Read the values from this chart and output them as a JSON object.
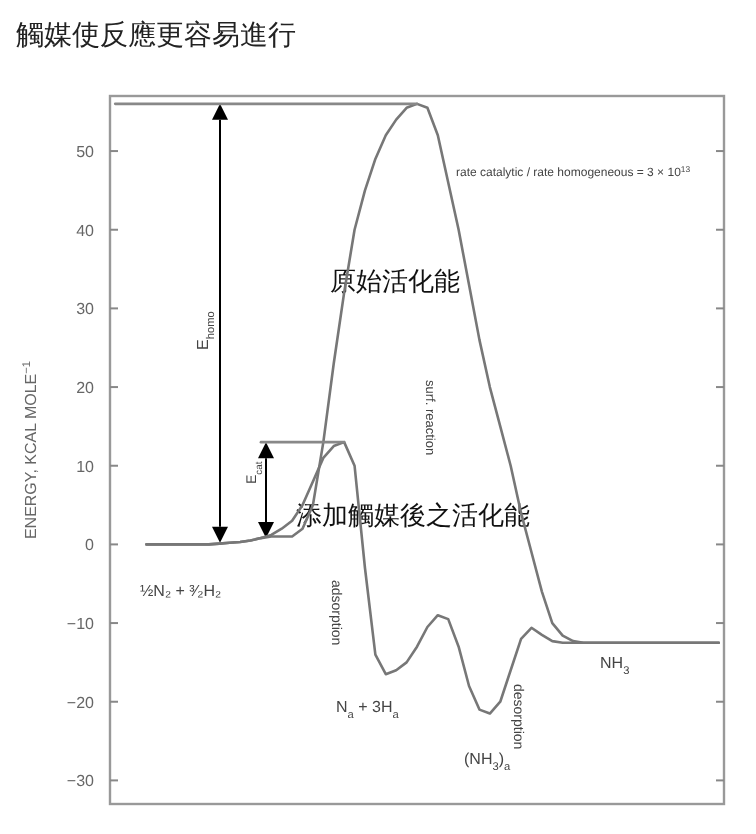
{
  "chart_data": {
    "type": "line",
    "title": "觸媒使反應更容易進行",
    "ylabel": "ENERGY, KCAL MOLE$^{−1}$",
    "categories": [
      null,
      null,
      null,
      null,
      null,
      null,
      null,
      null,
      null,
      null,
      null,
      null,
      null,
      null,
      null,
      null,
      null,
      null,
      null,
      null,
      null,
      null,
      null,
      null,
      null,
      null,
      null,
      null,
      null,
      null,
      null,
      null,
      null,
      null,
      null,
      null,
      null,
      null,
      null,
      null,
      null,
      null,
      null,
      null,
      null,
      null,
      null,
      null,
      null,
      null,
      null,
      null,
      null,
      null,
      null,
      null,
      null,
      null,
      null
    ],
    "series": [
      {
        "color": "#777777",
        "values": [
          null,
          null,
          null,
          0,
          0,
          0,
          0,
          0,
          0,
          0,
          0.1,
          0.2,
          0.3,
          0.5,
          0.8,
          1,
          1,
          1,
          2,
          5,
          13,
          23,
          32,
          40,
          45,
          49,
          52,
          54,
          55.5,
          56,
          55.5,
          52,
          46,
          40,
          33,
          26,
          20,
          15,
          10,
          4,
          -1,
          -6,
          -10,
          -11.6,
          -12.3,
          -12.5,
          -12.5,
          -12.5,
          -12.5,
          -12.5,
          -12.5,
          -12.5,
          -12.5,
          -12.5,
          -12.5,
          -12.5,
          -12.5,
          -12.5,
          -12.5
        ]
      },
      {
        "color": "#777777",
        "values": [
          null,
          null,
          null,
          0,
          0,
          0,
          0,
          0,
          0,
          0,
          0.1,
          0.2,
          0.3,
          0.5,
          0.8,
          1.2,
          2,
          3,
          5,
          8,
          11,
          12.5,
          13,
          10,
          -3,
          -14,
          -16.5,
          -16,
          -15,
          -13,
          -10.5,
          -9,
          -9.5,
          -13,
          -18,
          -21,
          -21.5,
          -20,
          -16,
          -12,
          -10.6,
          -11.5,
          -12.3,
          -12.5,
          -12.5,
          -12.5,
          -12.5,
          -12.5,
          -12.5,
          -12.5,
          -12.5,
          -12.5,
          -12.5,
          -12.5,
          -12.5,
          -12.5,
          -12.5,
          -12.5,
          -12.5
        ]
      },
      {
        "color": "#888888",
        "values": [
          56,
          56,
          56,
          56,
          56,
          56,
          56,
          56,
          56,
          56,
          56,
          56,
          56,
          56,
          56,
          56,
          56,
          56,
          56,
          56,
          56,
          56,
          56,
          56,
          56,
          56,
          56,
          56,
          56,
          56,
          null,
          null,
          null,
          null,
          null,
          null,
          null,
          null,
          null,
          null,
          null,
          null,
          null,
          null,
          null,
          null,
          null,
          null,
          null,
          null,
          null,
          null,
          null,
          null,
          null,
          null,
          null,
          null,
          null
        ]
      },
      {
        "color": "#888888",
        "values": [
          null,
          null,
          null,
          null,
          null,
          null,
          null,
          null,
          null,
          null,
          null,
          null,
          null,
          null,
          13,
          13,
          13,
          13,
          13,
          13,
          13,
          13,
          13,
          null,
          null,
          null,
          null,
          null,
          null,
          null,
          null,
          null,
          null,
          null,
          null,
          null,
          null,
          null,
          null,
          null,
          null,
          null,
          null,
          null,
          null,
          null,
          null,
          null,
          null,
          null,
          null,
          null,
          null,
          null,
          null,
          null,
          null,
          null,
          null
        ]
      }
    ],
    "ylim": [
      -33,
      57
    ],
    "yticks": [
      -30,
      -20,
      -10,
      0,
      10,
      20,
      30,
      40,
      50
    ],
    "tick_labels": "y",
    "grid": false,
    "annotations": [
      "原始活化能",
      "添加觸媒後之活化能",
      "½N₂ + ³⁄₂H₂",
      "adsorption",
      "surf. reaction",
      "desorption",
      "N$_{a}$ + 3H$_{a}$",
      "(NH$_{3}$)$_{a}$",
      "NH$_{3}$",
      "rate catalytic / rate homogeneous = 3 × 10$^{13}$",
      "E$_{homo}$",
      "E$_{cat}$"
    ]
  }
}
